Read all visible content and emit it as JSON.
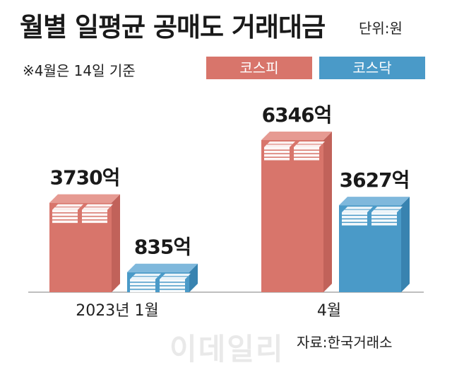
{
  "title": "월별 일평균 공매도 거래대금",
  "unit": "단위:원",
  "note": "※4월은 14일 기준",
  "source": "자료:한국거래소",
  "watermark": "이데일리",
  "colors": {
    "kospi": "#d8756b",
    "kosdaq": "#4a9ac8"
  },
  "chart_data": {
    "type": "bar",
    "categories": [
      "2023년 1월",
      "4월"
    ],
    "series": [
      {
        "name": "코스피",
        "values": [
          3730,
          6346
        ],
        "labels": [
          "3730억",
          "6346억"
        ]
      },
      {
        "name": "코스닥",
        "values": [
          835,
          3627
        ],
        "labels": [
          "835억",
          "3627억"
        ]
      }
    ],
    "ylim": [
      0,
      7000
    ],
    "grid": false,
    "legend": "top-right"
  }
}
